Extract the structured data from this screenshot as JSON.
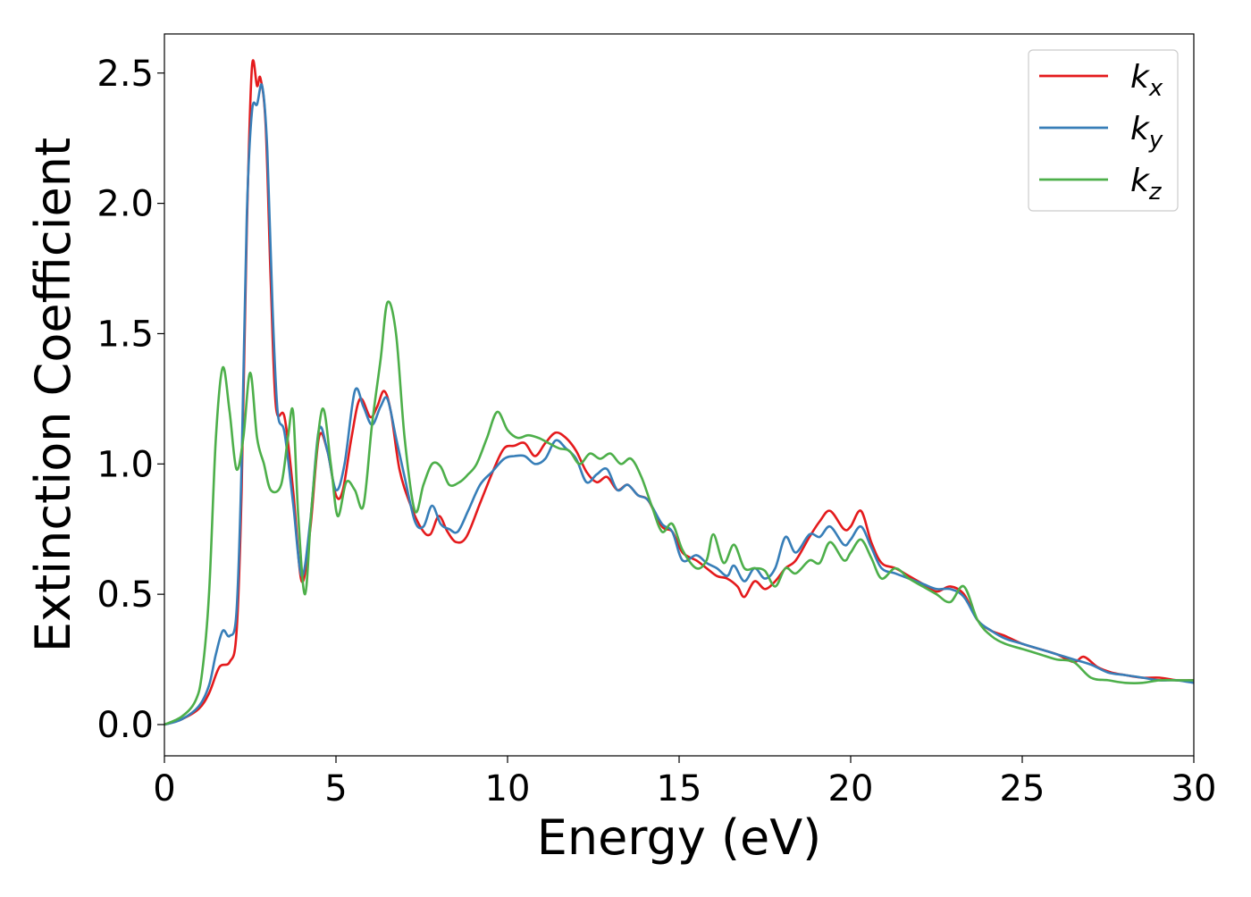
{
  "chart_data": {
    "type": "line",
    "title": "",
    "xlabel": "Energy (eV)",
    "ylabel": "Extinction Coefficient",
    "xlim": [
      0,
      30
    ],
    "ylim": [
      -0.12,
      2.65
    ],
    "xticks": [
      0,
      5,
      10,
      15,
      20,
      25,
      30
    ],
    "xtick_labels": [
      "0",
      "5",
      "10",
      "15",
      "20",
      "25",
      "30"
    ],
    "yticks": [
      0.0,
      0.5,
      1.0,
      1.5,
      2.0,
      2.5
    ],
    "ytick_labels": [
      "0.0",
      "0.5",
      "1.0",
      "1.5",
      "2.0",
      "2.5"
    ],
    "grid": false,
    "legend_position": "top-right",
    "series": [
      {
        "name": "k_x",
        "legend_base": "k",
        "legend_sub": "x",
        "color": "#e41a1c",
        "points": [
          [
            0,
            0
          ],
          [
            0.5,
            0.02
          ],
          [
            1,
            0.06
          ],
          [
            1.3,
            0.12
          ],
          [
            1.6,
            0.22
          ],
          [
            1.9,
            0.24
          ],
          [
            2.1,
            0.35
          ],
          [
            2.25,
            0.9
          ],
          [
            2.4,
            1.9
          ],
          [
            2.55,
            2.52
          ],
          [
            2.7,
            2.45
          ],
          [
            2.8,
            2.48
          ],
          [
            2.95,
            2.3
          ],
          [
            3.1,
            1.7
          ],
          [
            3.25,
            1.22
          ],
          [
            3.5,
            1.18
          ],
          [
            3.75,
            0.9
          ],
          [
            4.0,
            0.55
          ],
          [
            4.25,
            0.75
          ],
          [
            4.5,
            1.1
          ],
          [
            4.75,
            1.05
          ],
          [
            5.0,
            0.88
          ],
          [
            5.2,
            0.9
          ],
          [
            5.45,
            1.1
          ],
          [
            5.7,
            1.25
          ],
          [
            6.0,
            1.18
          ],
          [
            6.2,
            1.22
          ],
          [
            6.4,
            1.28
          ],
          [
            6.6,
            1.2
          ],
          [
            6.85,
            0.98
          ],
          [
            7.15,
            0.85
          ],
          [
            7.5,
            0.75
          ],
          [
            7.75,
            0.73
          ],
          [
            8.0,
            0.8
          ],
          [
            8.25,
            0.74
          ],
          [
            8.5,
            0.7
          ],
          [
            8.8,
            0.72
          ],
          [
            9.2,
            0.85
          ],
          [
            9.6,
            0.98
          ],
          [
            9.9,
            1.06
          ],
          [
            10.2,
            1.07
          ],
          [
            10.5,
            1.08
          ],
          [
            10.8,
            1.03
          ],
          [
            11.1,
            1.08
          ],
          [
            11.4,
            1.12
          ],
          [
            11.7,
            1.1
          ],
          [
            12.0,
            1.05
          ],
          [
            12.3,
            0.97
          ],
          [
            12.6,
            0.93
          ],
          [
            12.9,
            0.95
          ],
          [
            13.2,
            0.9
          ],
          [
            13.5,
            0.92
          ],
          [
            13.8,
            0.88
          ],
          [
            14.1,
            0.86
          ],
          [
            14.5,
            0.76
          ],
          [
            14.8,
            0.74
          ],
          [
            15.1,
            0.66
          ],
          [
            15.5,
            0.63
          ],
          [
            15.8,
            0.6
          ],
          [
            16.1,
            0.57
          ],
          [
            16.4,
            0.56
          ],
          [
            16.7,
            0.53
          ],
          [
            16.9,
            0.49
          ],
          [
            17.2,
            0.55
          ],
          [
            17.5,
            0.52
          ],
          [
            17.8,
            0.55
          ],
          [
            18.1,
            0.6
          ],
          [
            18.4,
            0.63
          ],
          [
            18.8,
            0.72
          ],
          [
            19.1,
            0.78
          ],
          [
            19.4,
            0.82
          ],
          [
            19.8,
            0.75
          ],
          [
            20.0,
            0.76
          ],
          [
            20.3,
            0.82
          ],
          [
            20.6,
            0.7
          ],
          [
            20.9,
            0.62
          ],
          [
            21.3,
            0.6
          ],
          [
            21.7,
            0.57
          ],
          [
            22.1,
            0.54
          ],
          [
            22.5,
            0.51
          ],
          [
            22.9,
            0.53
          ],
          [
            23.3,
            0.5
          ],
          [
            23.7,
            0.4
          ],
          [
            24.1,
            0.36
          ],
          [
            24.5,
            0.34
          ],
          [
            25.0,
            0.31
          ],
          [
            25.5,
            0.29
          ],
          [
            26.0,
            0.27
          ],
          [
            26.5,
            0.24
          ],
          [
            26.8,
            0.26
          ],
          [
            27.2,
            0.22
          ],
          [
            27.6,
            0.2
          ],
          [
            28.0,
            0.19
          ],
          [
            28.5,
            0.18
          ],
          [
            29.0,
            0.18
          ],
          [
            29.5,
            0.17
          ],
          [
            30.0,
            0.17
          ]
        ]
      },
      {
        "name": "k_y",
        "legend_base": "k",
        "legend_sub": "y",
        "color": "#377eb8",
        "points": [
          [
            0,
            0
          ],
          [
            0.5,
            0.02
          ],
          [
            1,
            0.07
          ],
          [
            1.3,
            0.15
          ],
          [
            1.5,
            0.27
          ],
          [
            1.7,
            0.36
          ],
          [
            1.9,
            0.34
          ],
          [
            2.1,
            0.43
          ],
          [
            2.25,
            1.0
          ],
          [
            2.4,
            1.95
          ],
          [
            2.55,
            2.35
          ],
          [
            2.7,
            2.38
          ],
          [
            2.85,
            2.45
          ],
          [
            3.0,
            2.2
          ],
          [
            3.15,
            1.6
          ],
          [
            3.3,
            1.2
          ],
          [
            3.5,
            1.12
          ],
          [
            3.75,
            0.85
          ],
          [
            4.0,
            0.57
          ],
          [
            4.25,
            0.78
          ],
          [
            4.5,
            1.13
          ],
          [
            4.75,
            1.05
          ],
          [
            5.0,
            0.9
          ],
          [
            5.25,
            1.0
          ],
          [
            5.55,
            1.28
          ],
          [
            5.8,
            1.22
          ],
          [
            6.05,
            1.15
          ],
          [
            6.3,
            1.22
          ],
          [
            6.5,
            1.25
          ],
          [
            6.75,
            1.1
          ],
          [
            7.0,
            0.95
          ],
          [
            7.3,
            0.78
          ],
          [
            7.55,
            0.76
          ],
          [
            7.8,
            0.84
          ],
          [
            8.05,
            0.77
          ],
          [
            8.3,
            0.75
          ],
          [
            8.55,
            0.74
          ],
          [
            8.85,
            0.82
          ],
          [
            9.2,
            0.92
          ],
          [
            9.55,
            0.97
          ],
          [
            9.9,
            1.02
          ],
          [
            10.2,
            1.03
          ],
          [
            10.5,
            1.03
          ],
          [
            10.8,
            1.0
          ],
          [
            11.1,
            1.02
          ],
          [
            11.4,
            1.09
          ],
          [
            11.7,
            1.06
          ],
          [
            12.0,
            1.02
          ],
          [
            12.3,
            0.93
          ],
          [
            12.6,
            0.96
          ],
          [
            12.9,
            0.98
          ],
          [
            13.2,
            0.9
          ],
          [
            13.5,
            0.92
          ],
          [
            13.8,
            0.88
          ],
          [
            14.1,
            0.86
          ],
          [
            14.5,
            0.77
          ],
          [
            14.8,
            0.74
          ],
          [
            15.1,
            0.63
          ],
          [
            15.5,
            0.65
          ],
          [
            15.8,
            0.62
          ],
          [
            16.1,
            0.6
          ],
          [
            16.4,
            0.57
          ],
          [
            16.6,
            0.61
          ],
          [
            16.9,
            0.55
          ],
          [
            17.2,
            0.6
          ],
          [
            17.5,
            0.56
          ],
          [
            17.8,
            0.6
          ],
          [
            18.1,
            0.72
          ],
          [
            18.4,
            0.66
          ],
          [
            18.8,
            0.73
          ],
          [
            19.1,
            0.72
          ],
          [
            19.4,
            0.76
          ],
          [
            19.8,
            0.69
          ],
          [
            20.0,
            0.71
          ],
          [
            20.3,
            0.76
          ],
          [
            20.6,
            0.68
          ],
          [
            20.9,
            0.6
          ],
          [
            21.3,
            0.58
          ],
          [
            21.7,
            0.56
          ],
          [
            22.1,
            0.54
          ],
          [
            22.5,
            0.52
          ],
          [
            22.9,
            0.52
          ],
          [
            23.3,
            0.49
          ],
          [
            23.7,
            0.4
          ],
          [
            24.1,
            0.36
          ],
          [
            24.5,
            0.33
          ],
          [
            25.0,
            0.31
          ],
          [
            25.5,
            0.29
          ],
          [
            26.0,
            0.27
          ],
          [
            26.5,
            0.25
          ],
          [
            27.0,
            0.23
          ],
          [
            27.5,
            0.2
          ],
          [
            28.0,
            0.19
          ],
          [
            28.5,
            0.18
          ],
          [
            29.0,
            0.17
          ],
          [
            29.5,
            0.17
          ],
          [
            30.0,
            0.16
          ]
        ]
      },
      {
        "name": "k_z",
        "legend_base": "k",
        "legend_sub": "z",
        "color": "#4daf4a",
        "points": [
          [
            0,
            0
          ],
          [
            0.5,
            0.03
          ],
          [
            0.9,
            0.09
          ],
          [
            1.1,
            0.2
          ],
          [
            1.3,
            0.5
          ],
          [
            1.5,
            1.1
          ],
          [
            1.7,
            1.37
          ],
          [
            1.9,
            1.2
          ],
          [
            2.1,
            0.98
          ],
          [
            2.3,
            1.1
          ],
          [
            2.5,
            1.35
          ],
          [
            2.7,
            1.1
          ],
          [
            2.9,
            1.0
          ],
          [
            3.1,
            0.9
          ],
          [
            3.4,
            0.92
          ],
          [
            3.6,
            1.1
          ],
          [
            3.75,
            1.2
          ],
          [
            3.9,
            0.8
          ],
          [
            4.1,
            0.5
          ],
          [
            4.3,
            0.85
          ],
          [
            4.6,
            1.21
          ],
          [
            4.85,
            1.0
          ],
          [
            5.05,
            0.8
          ],
          [
            5.3,
            0.93
          ],
          [
            5.55,
            0.9
          ],
          [
            5.8,
            0.84
          ],
          [
            6.05,
            1.15
          ],
          [
            6.3,
            1.4
          ],
          [
            6.5,
            1.62
          ],
          [
            6.75,
            1.5
          ],
          [
            7.0,
            1.1
          ],
          [
            7.3,
            0.82
          ],
          [
            7.55,
            0.92
          ],
          [
            7.8,
            1.0
          ],
          [
            8.05,
            0.99
          ],
          [
            8.3,
            0.92
          ],
          [
            8.6,
            0.93
          ],
          [
            8.85,
            0.96
          ],
          [
            9.1,
            1.0
          ],
          [
            9.4,
            1.1
          ],
          [
            9.7,
            1.2
          ],
          [
            10.0,
            1.13
          ],
          [
            10.3,
            1.1
          ],
          [
            10.6,
            1.11
          ],
          [
            10.9,
            1.1
          ],
          [
            11.2,
            1.08
          ],
          [
            11.5,
            1.06
          ],
          [
            11.8,
            1.05
          ],
          [
            12.1,
            1.0
          ],
          [
            12.4,
            1.04
          ],
          [
            12.7,
            1.02
          ],
          [
            13.0,
            1.04
          ],
          [
            13.3,
            1.0
          ],
          [
            13.6,
            1.02
          ],
          [
            13.9,
            0.95
          ],
          [
            14.2,
            0.84
          ],
          [
            14.5,
            0.74
          ],
          [
            14.8,
            0.77
          ],
          [
            15.1,
            0.67
          ],
          [
            15.5,
            0.6
          ],
          [
            15.8,
            0.63
          ],
          [
            16.0,
            0.73
          ],
          [
            16.3,
            0.62
          ],
          [
            16.6,
            0.69
          ],
          [
            16.9,
            0.6
          ],
          [
            17.2,
            0.6
          ],
          [
            17.5,
            0.59
          ],
          [
            17.8,
            0.53
          ],
          [
            18.1,
            0.6
          ],
          [
            18.4,
            0.58
          ],
          [
            18.8,
            0.63
          ],
          [
            19.1,
            0.62
          ],
          [
            19.4,
            0.7
          ],
          [
            19.8,
            0.63
          ],
          [
            20.0,
            0.66
          ],
          [
            20.3,
            0.71
          ],
          [
            20.6,
            0.64
          ],
          [
            20.9,
            0.56
          ],
          [
            21.3,
            0.6
          ],
          [
            21.7,
            0.56
          ],
          [
            22.1,
            0.53
          ],
          [
            22.5,
            0.5
          ],
          [
            22.9,
            0.47
          ],
          [
            23.3,
            0.53
          ],
          [
            23.7,
            0.4
          ],
          [
            24.1,
            0.34
          ],
          [
            24.5,
            0.31
          ],
          [
            25.0,
            0.29
          ],
          [
            25.5,
            0.27
          ],
          [
            26.0,
            0.25
          ],
          [
            26.5,
            0.24
          ],
          [
            27.0,
            0.18
          ],
          [
            27.5,
            0.17
          ],
          [
            28.0,
            0.16
          ],
          [
            28.5,
            0.16
          ],
          [
            29.0,
            0.17
          ],
          [
            29.5,
            0.17
          ],
          [
            30.0,
            0.17
          ]
        ]
      }
    ]
  }
}
